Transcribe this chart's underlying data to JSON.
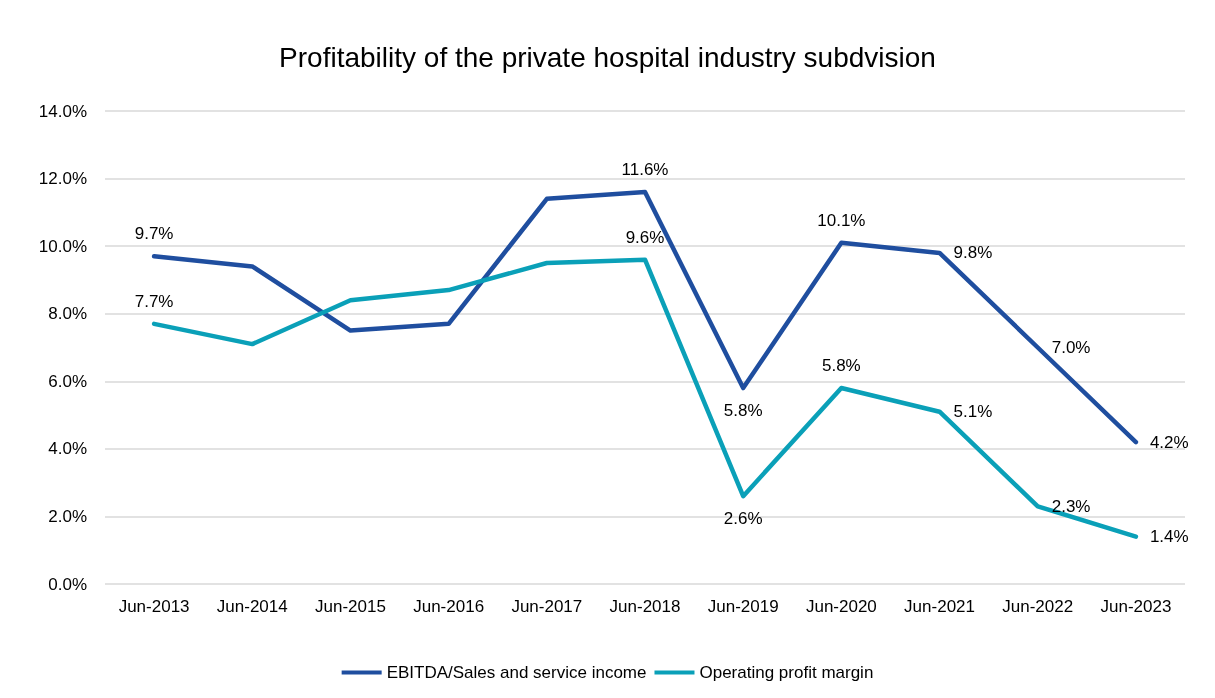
{
  "chart_data": {
    "type": "line",
    "title": "Profitability of the private hospital industry subdvision",
    "categories": [
      "Jun-2013",
      "Jun-2014",
      "Jun-2015",
      "Jun-2016",
      "Jun-2017",
      "Jun-2018",
      "Jun-2019",
      "Jun-2020",
      "Jun-2021",
      "Jun-2022",
      "Jun-2023"
    ],
    "series": [
      {
        "name": "EBITDA/Sales and service income",
        "color": "#1f4e9f",
        "values": [
          9.7,
          9.4,
          7.5,
          7.7,
          11.4,
          11.6,
          5.8,
          10.1,
          9.8,
          7.0,
          4.2
        ],
        "value_labels": [
          "9.7%",
          null,
          null,
          null,
          null,
          "11.6%",
          "5.8%",
          "10.1%",
          "9.8%",
          "7.0%",
          "4.2%"
        ]
      },
      {
        "name": "Operating profit margin",
        "color": "#0aa0b8",
        "values": [
          7.7,
          7.1,
          8.4,
          8.7,
          9.5,
          9.6,
          2.6,
          5.8,
          5.1,
          2.3,
          1.4
        ],
        "value_labels": [
          "7.7%",
          null,
          null,
          null,
          null,
          "9.6%",
          "2.6%",
          "5.8%",
          "5.1%",
          "2.3%",
          "1.4%"
        ]
      }
    ],
    "ylim": [
      0,
      14
    ],
    "yticks": [
      {
        "value": 0,
        "label": "0.0%"
      },
      {
        "value": 2,
        "label": "2.0%"
      },
      {
        "value": 4,
        "label": "4.0%"
      },
      {
        "value": 6,
        "label": "6.0%"
      },
      {
        "value": 8,
        "label": "8.0%"
      },
      {
        "value": 10,
        "label": "10.0%"
      },
      {
        "value": 12,
        "label": "12.0%"
      },
      {
        "value": 14,
        "label": "14.0%"
      }
    ],
    "grid": "y",
    "legend": "bottom",
    "marker": "none",
    "line_style": "solid"
  }
}
